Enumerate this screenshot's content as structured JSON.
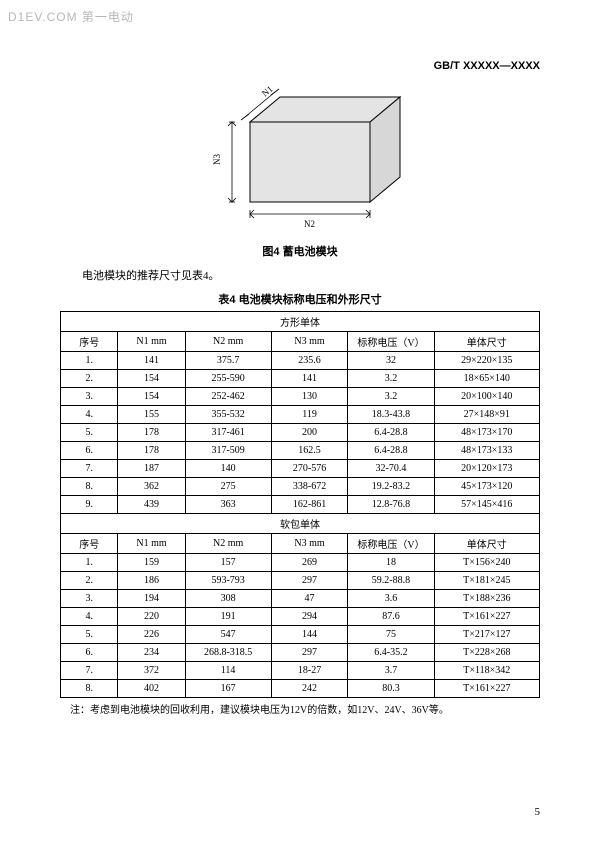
{
  "watermark": "D1EV.COM 第一电动",
  "header": "GB/T XXXXX—XXXX",
  "diagram": {
    "labels": {
      "n1": "N1",
      "n2": "N2",
      "n3": "N3"
    },
    "fill": "#e4e4e4",
    "stroke": "#000000"
  },
  "fig_caption": "图4  蓄电池模块",
  "intro_line": "电池模块的推荐尺寸见表4。",
  "table_caption": "表4  电池模块标称电压和外形尺寸",
  "headers": {
    "idx": "序号",
    "n1": "N1 mm",
    "n2": "N2 mm",
    "n3": "N3 mm",
    "v": "标称电压（V）",
    "size": "单体尺寸"
  },
  "section_a": "方形单体",
  "rows_a": [
    {
      "i": "1.",
      "n1": "141",
      "n2": "375.7",
      "n3": "235.6",
      "v": "32",
      "s": "29×220×135"
    },
    {
      "i": "2.",
      "n1": "154",
      "n2": "255-590",
      "n3": "141",
      "v": "3.2",
      "s": "18×65×140"
    },
    {
      "i": "3.",
      "n1": "154",
      "n2": "252-462",
      "n3": "130",
      "v": "3.2",
      "s": "20×100×140"
    },
    {
      "i": "4.",
      "n1": "155",
      "n2": "355-532",
      "n3": "119",
      "v": "18.3-43.8",
      "s": "27×148×91"
    },
    {
      "i": "5.",
      "n1": "178",
      "n2": "317-461",
      "n3": "200",
      "v": "6.4-28.8",
      "s": "48×173×170"
    },
    {
      "i": "6.",
      "n1": "178",
      "n2": "317-509",
      "n3": "162.5",
      "v": "6.4-28.8",
      "s": "48×173×133"
    },
    {
      "i": "7.",
      "n1": "187",
      "n2": "140",
      "n3": "270-576",
      "v": "32-70.4",
      "s": "20×120×173"
    },
    {
      "i": "8.",
      "n1": "362",
      "n2": "275",
      "n3": "338-672",
      "v": "19.2-83.2",
      "s": "45×173×120"
    },
    {
      "i": "9.",
      "n1": "439",
      "n2": "363",
      "n3": "162-861",
      "v": "12.8-76.8",
      "s": "57×145×416"
    }
  ],
  "section_b": "软包单体",
  "rows_b": [
    {
      "i": "1.",
      "n1": "159",
      "n2": "157",
      "n3": "269",
      "v": "18",
      "s": "T×156×240"
    },
    {
      "i": "2.",
      "n1": "186",
      "n2": "593-793",
      "n3": "297",
      "v": "59.2-88.8",
      "s": "T×181×245"
    },
    {
      "i": "3.",
      "n1": "194",
      "n2": "308",
      "n3": "47",
      "v": "3.6",
      "s": "T×188×236"
    },
    {
      "i": "4.",
      "n1": "220",
      "n2": "191",
      "n3": "294",
      "v": "87.6",
      "s": "T×161×227"
    },
    {
      "i": "5.",
      "n1": "226",
      "n2": "547",
      "n3": "144",
      "v": "75",
      "s": "T×217×127"
    },
    {
      "i": "6.",
      "n1": "234",
      "n2": "268.8-318.5",
      "n3": "297",
      "v": "6.4-35.2",
      "s": "T×228×268"
    },
    {
      "i": "7.",
      "n1": "372",
      "n2": "114",
      "n3": "18-27",
      "v": "3.7",
      "s": "T×118×342"
    },
    {
      "i": "8.",
      "n1": "402",
      "n2": "167",
      "n3": "242",
      "v": "80.3",
      "s": "T×161×227"
    }
  ],
  "footnote": "注：考虑到电池模块的回收利用，建议模块电压为12V的倍数，如12V、24V、36V等。",
  "page_number": "5"
}
